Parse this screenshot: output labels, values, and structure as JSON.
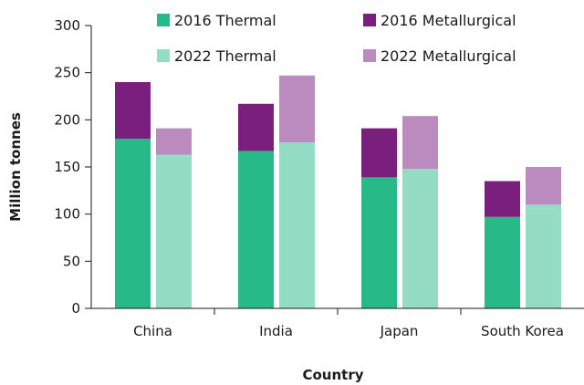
{
  "chart_data": {
    "type": "bar",
    "stacked": true,
    "grouped": true,
    "categories": [
      "China",
      "India",
      "Japan",
      "South Korea"
    ],
    "groups": [
      "2016",
      "2022"
    ],
    "series": [
      {
        "name": "2016 Thermal",
        "group": "2016",
        "color": "#27b988",
        "values": [
          180,
          167,
          139,
          97
        ]
      },
      {
        "name": "2016 Metallurgical",
        "group": "2016",
        "color": "#7b1f7f",
        "values": [
          60,
          50,
          52,
          38
        ]
      },
      {
        "name": "2022 Thermal",
        "group": "2022",
        "color": "#94dcc4",
        "values": [
          163,
          176,
          148,
          110
        ]
      },
      {
        "name": "2022 Metallurgical",
        "group": "2022",
        "color": "#bb8bbf",
        "values": [
          28,
          71,
          56,
          40
        ]
      }
    ],
    "xlabel": "Country",
    "ylabel": "Million tonnes",
    "ylim": [
      0,
      300
    ],
    "yticks": [
      "0",
      "50",
      "100",
      "150",
      "200",
      "250",
      "300"
    ],
    "grid": false,
    "legend_position": "top"
  }
}
